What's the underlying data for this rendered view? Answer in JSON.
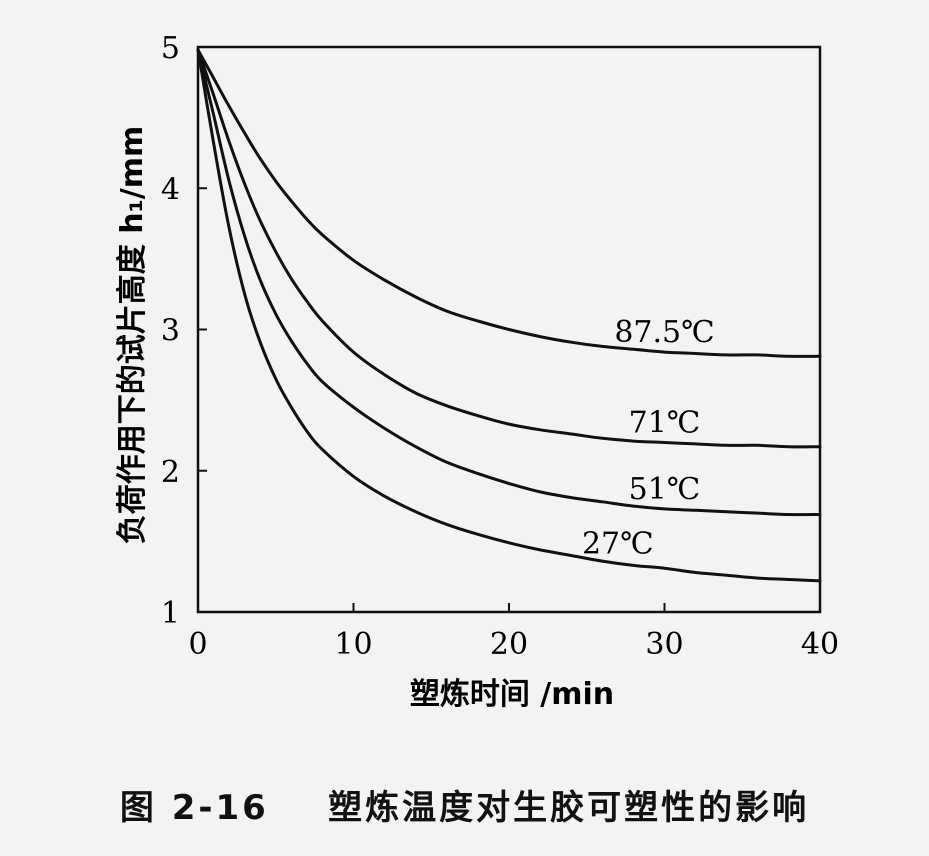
{
  "caption": {
    "number": "图 2-16",
    "text": "塑炼温度对生胶可塑性的影响"
  },
  "chart_data": {
    "type": "line",
    "title": "",
    "xlabel": "塑炼时间 /min",
    "ylabel": "负荷作用下的试片高度 h₁/mm",
    "xlim": [
      0,
      40
    ],
    "ylim": [
      1,
      5
    ],
    "xticks": [
      "0",
      "10",
      "20",
      "30",
      "40"
    ],
    "yticks": [
      "1",
      "2",
      "3",
      "4",
      "5"
    ],
    "grid": false,
    "x": [
      0,
      1,
      2,
      3,
      4,
      5,
      6,
      7,
      8,
      10,
      12,
      14,
      16,
      18,
      20,
      22,
      24,
      26,
      28,
      30,
      32,
      34,
      36,
      38,
      40
    ],
    "series": [
      {
        "name": "87.5℃",
        "values": [
          4.98,
          4.78,
          4.58,
          4.39,
          4.21,
          4.05,
          3.91,
          3.78,
          3.67,
          3.49,
          3.35,
          3.23,
          3.13,
          3.06,
          3.0,
          2.95,
          2.91,
          2.88,
          2.86,
          2.84,
          2.83,
          2.82,
          2.82,
          2.81,
          2.81
        ]
      },
      {
        "name": "71℃",
        "values": [
          4.98,
          4.66,
          4.33,
          4.03,
          3.77,
          3.55,
          3.36,
          3.2,
          3.06,
          2.84,
          2.68,
          2.55,
          2.46,
          2.39,
          2.33,
          2.29,
          2.26,
          2.23,
          2.21,
          2.2,
          2.19,
          2.18,
          2.18,
          2.17,
          2.17
        ]
      },
      {
        "name": "51℃",
        "values": [
          4.98,
          4.52,
          4.05,
          3.66,
          3.35,
          3.11,
          2.92,
          2.76,
          2.63,
          2.45,
          2.3,
          2.17,
          2.06,
          1.98,
          1.91,
          1.85,
          1.81,
          1.78,
          1.75,
          1.73,
          1.72,
          1.71,
          1.7,
          1.69,
          1.69
        ]
      },
      {
        "name": "27℃",
        "values": [
          4.98,
          4.32,
          3.72,
          3.25,
          2.91,
          2.65,
          2.45,
          2.28,
          2.15,
          1.96,
          1.82,
          1.71,
          1.62,
          1.55,
          1.49,
          1.44,
          1.4,
          1.36,
          1.33,
          1.31,
          1.28,
          1.26,
          1.24,
          1.23,
          1.22
        ]
      }
    ],
    "series_label_anchor_x": [
      30,
      30,
      30,
      27
    ]
  }
}
